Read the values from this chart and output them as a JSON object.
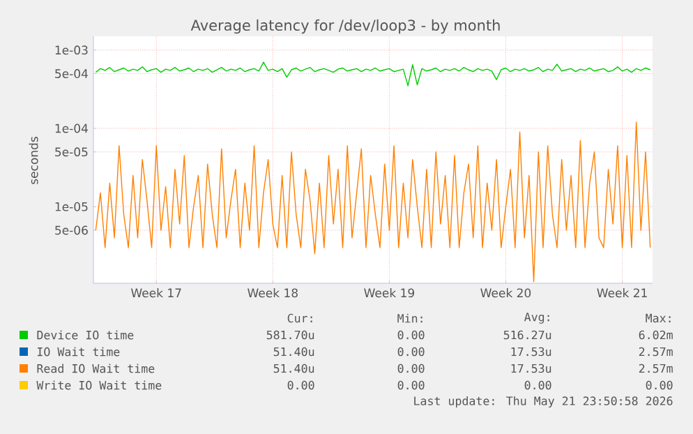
{
  "chart_data": {
    "type": "line",
    "title": "Average latency for /dev/loop3 - by month",
    "ylabel": "seconds",
    "log": "y",
    "grid": true,
    "legend": "bottom",
    "ylim": [
      1.05e-06,
      0.0015
    ],
    "yticks": [
      {
        "value": 0.001,
        "label": "1e-03"
      },
      {
        "value": 0.0005,
        "label": "5e-04"
      },
      {
        "value": 0.0001,
        "label": "1e-04"
      },
      {
        "value": 5e-05,
        "label": "5e-05"
      },
      {
        "value": 1e-05,
        "label": "1e-05"
      },
      {
        "value": 5e-06,
        "label": "5e-06"
      }
    ],
    "categories": [
      null,
      null,
      null,
      null,
      null,
      null,
      null,
      null,
      null,
      null,
      null,
      null,
      null,
      "Week 17",
      null,
      null,
      null,
      null,
      null,
      null,
      null,
      null,
      null,
      null,
      null,
      null,
      null,
      null,
      null,
      null,
      null,
      null,
      null,
      null,
      null,
      null,
      null,
      null,
      "Week 18",
      null,
      null,
      null,
      null,
      null,
      null,
      null,
      null,
      null,
      null,
      null,
      null,
      null,
      null,
      null,
      null,
      null,
      null,
      null,
      null,
      null,
      null,
      null,
      null,
      "Week 19",
      null,
      null,
      null,
      null,
      null,
      null,
      null,
      null,
      null,
      null,
      null,
      null,
      null,
      null,
      null,
      null,
      null,
      null,
      null,
      null,
      null,
      null,
      null,
      null,
      "Week 20",
      null,
      null,
      null,
      null,
      null,
      null,
      null,
      null,
      null,
      null,
      null,
      null,
      null,
      null,
      null,
      null,
      null,
      null,
      null,
      null,
      null,
      null,
      null,
      null,
      "Week 21",
      null,
      null,
      null,
      null,
      null,
      null
    ],
    "series": [
      {
        "name": "Device IO time",
        "color": "#00cc00",
        "values": [
          0.00052,
          0.00058,
          0.00055,
          0.0006,
          0.00053,
          0.00056,
          0.00059,
          0.00054,
          0.00057,
          0.00055,
          0.00061,
          0.00053,
          0.00056,
          0.00058,
          0.00052,
          0.00057,
          0.00055,
          0.0006,
          0.00054,
          0.00056,
          0.00059,
          0.00053,
          0.00057,
          0.00055,
          0.00058,
          0.00052,
          0.00056,
          0.0006,
          0.00054,
          0.00057,
          0.00055,
          0.00059,
          0.00053,
          0.00056,
          0.00058,
          0.00054,
          0.0007,
          0.00055,
          0.00057,
          0.00053,
          0.00058,
          0.00045,
          0.00056,
          0.00059,
          0.00054,
          0.00057,
          0.0006,
          0.00053,
          0.00056,
          0.00058,
          0.00055,
          0.00052,
          0.00057,
          0.00059,
          0.00054,
          0.00056,
          0.00058,
          0.00053,
          0.00057,
          0.00055,
          0.00059,
          0.00054,
          0.00056,
          0.00058,
          0.00053,
          0.00055,
          0.00057,
          0.00035,
          0.00065,
          0.00036,
          0.00058,
          0.00054,
          0.00056,
          0.00059,
          0.00053,
          0.00057,
          0.00055,
          0.00058,
          0.00054,
          0.0006,
          0.00056,
          0.00053,
          0.00058,
          0.00055,
          0.00057,
          0.00054,
          0.00042,
          0.00056,
          0.00059,
          0.00053,
          0.00057,
          0.00055,
          0.00058,
          0.00054,
          0.00056,
          0.0006,
          0.00053,
          0.00057,
          0.00055,
          0.00066,
          0.00054,
          0.00056,
          0.00058,
          0.00053,
          0.00057,
          0.00055,
          0.00059,
          0.00054,
          0.00056,
          0.00058,
          0.00053,
          0.00055,
          0.00061,
          0.00054,
          0.00057,
          0.00052,
          0.00058,
          0.00055,
          0.00059,
          0.00056
        ]
      },
      {
        "name": "IO Wait time",
        "color": "#0066b3",
        "values": [
          null,
          null,
          null,
          null,
          null,
          null,
          null,
          null,
          null,
          null,
          null,
          null,
          null,
          null,
          null,
          null,
          null,
          null,
          null,
          null,
          null,
          null,
          null,
          null,
          null,
          null,
          null,
          null,
          null,
          null,
          null,
          null,
          null,
          null,
          null,
          null,
          null,
          null,
          null,
          null,
          null,
          null,
          null,
          null,
          null,
          null,
          null,
          null,
          null,
          null,
          null,
          null,
          null,
          null,
          null,
          null,
          null,
          null,
          null,
          null,
          null,
          null,
          null,
          null,
          null,
          null,
          null,
          null,
          null,
          null,
          null,
          null,
          null,
          null,
          null,
          null,
          null,
          null,
          null,
          null,
          null,
          null,
          null,
          null,
          null,
          null,
          null,
          null,
          null,
          null,
          null,
          null,
          null,
          null,
          null,
          null,
          null,
          null,
          null,
          null,
          null,
          null,
          null,
          null,
          null,
          null,
          null,
          null,
          null,
          null,
          null,
          null,
          null,
          null,
          null,
          null,
          null,
          null,
          null,
          null
        ]
      },
      {
        "name": "Read IO Wait time",
        "color": "#ff8000",
        "values": [
          5e-06,
          1.5e-05,
          3e-06,
          2e-05,
          4e-06,
          6e-05,
          8e-06,
          3e-06,
          2.5e-05,
          4e-06,
          4e-05,
          1.2e-05,
          3e-06,
          6e-05,
          5e-06,
          1.8e-05,
          3e-06,
          3e-05,
          6e-06,
          4.5e-05,
          3e-06,
          1e-05,
          2.5e-05,
          3e-06,
          3.5e-05,
          8e-06,
          3e-06,
          5.5e-05,
          4e-06,
          1.2e-05,
          3e-05,
          3e-06,
          2e-05,
          5e-06,
          6e-05,
          3e-06,
          1.5e-05,
          4e-05,
          6e-06,
          3e-06,
          2.5e-05,
          3e-06,
          5e-05,
          8e-06,
          3e-06,
          3e-05,
          1.2e-05,
          2.5e-06,
          2e-05,
          3e-06,
          4.5e-05,
          6e-06,
          3e-05,
          3e-06,
          6e-05,
          4e-06,
          1.5e-05,
          5.5e-05,
          3e-06,
          2.5e-05,
          8e-06,
          3e-06,
          3.5e-05,
          5e-06,
          6e-05,
          3e-06,
          2e-05,
          4e-06,
          4e-05,
          1e-05,
          3e-06,
          3e-05,
          3e-06,
          5e-05,
          6e-06,
          2.5e-05,
          3e-06,
          4.5e-05,
          3e-06,
          1.5e-05,
          3.5e-05,
          4e-06,
          6e-05,
          3e-06,
          2e-05,
          5e-06,
          4e-05,
          3e-06,
          1e-05,
          3e-05,
          3e-06,
          9e-05,
          4e-06,
          2.5e-05,
          1.1e-06,
          5e-05,
          3e-06,
          6e-05,
          8e-06,
          3e-06,
          4e-05,
          5e-06,
          2.5e-05,
          3e-06,
          7e-05,
          3e-06,
          2e-05,
          5e-05,
          4e-06,
          3e-06,
          3e-05,
          6e-06,
          6e-05,
          3e-06,
          4.5e-05,
          3e-06,
          0.00012,
          5e-06,
          5e-05,
          3e-06
        ]
      },
      {
        "name": "Write IO Wait time",
        "color": "#ffcc00",
        "values": [
          null,
          null,
          null,
          null,
          null,
          null,
          null,
          null,
          null,
          null,
          null,
          null,
          null,
          null,
          null,
          null,
          null,
          null,
          null,
          null,
          null,
          null,
          null,
          null,
          null,
          null,
          null,
          null,
          null,
          null,
          null,
          null,
          null,
          null,
          null,
          null,
          null,
          null,
          null,
          null,
          null,
          null,
          null,
          null,
          null,
          null,
          null,
          null,
          null,
          null,
          null,
          null,
          null,
          null,
          null,
          null,
          null,
          null,
          null,
          null,
          null,
          null,
          null,
          null,
          null,
          null,
          null,
          null,
          null,
          null,
          null,
          null,
          null,
          null,
          null,
          null,
          null,
          null,
          null,
          null,
          null,
          null,
          null,
          null,
          null,
          null,
          null,
          null,
          null,
          null,
          null,
          null,
          null,
          null,
          null,
          null,
          null,
          null,
          null,
          null,
          null,
          null,
          null,
          null,
          null,
          null,
          null,
          null,
          null,
          null,
          null,
          null,
          null,
          null,
          null,
          null,
          null,
          null,
          null,
          null
        ]
      }
    ],
    "annotations": [
      "Cur:",
      "Min:",
      "Avg:",
      "Max:",
      "581.70u",
      "0.00",
      "516.27u",
      "6.02m",
      "51.40u",
      "0.00",
      "17.53u",
      "2.57m",
      "51.40u",
      "0.00",
      "17.53u",
      "2.57m",
      "0.00",
      "0.00",
      "0.00",
      "0.00",
      "Last update: Thu May 21 23:50:58 2026"
    ]
  }
}
